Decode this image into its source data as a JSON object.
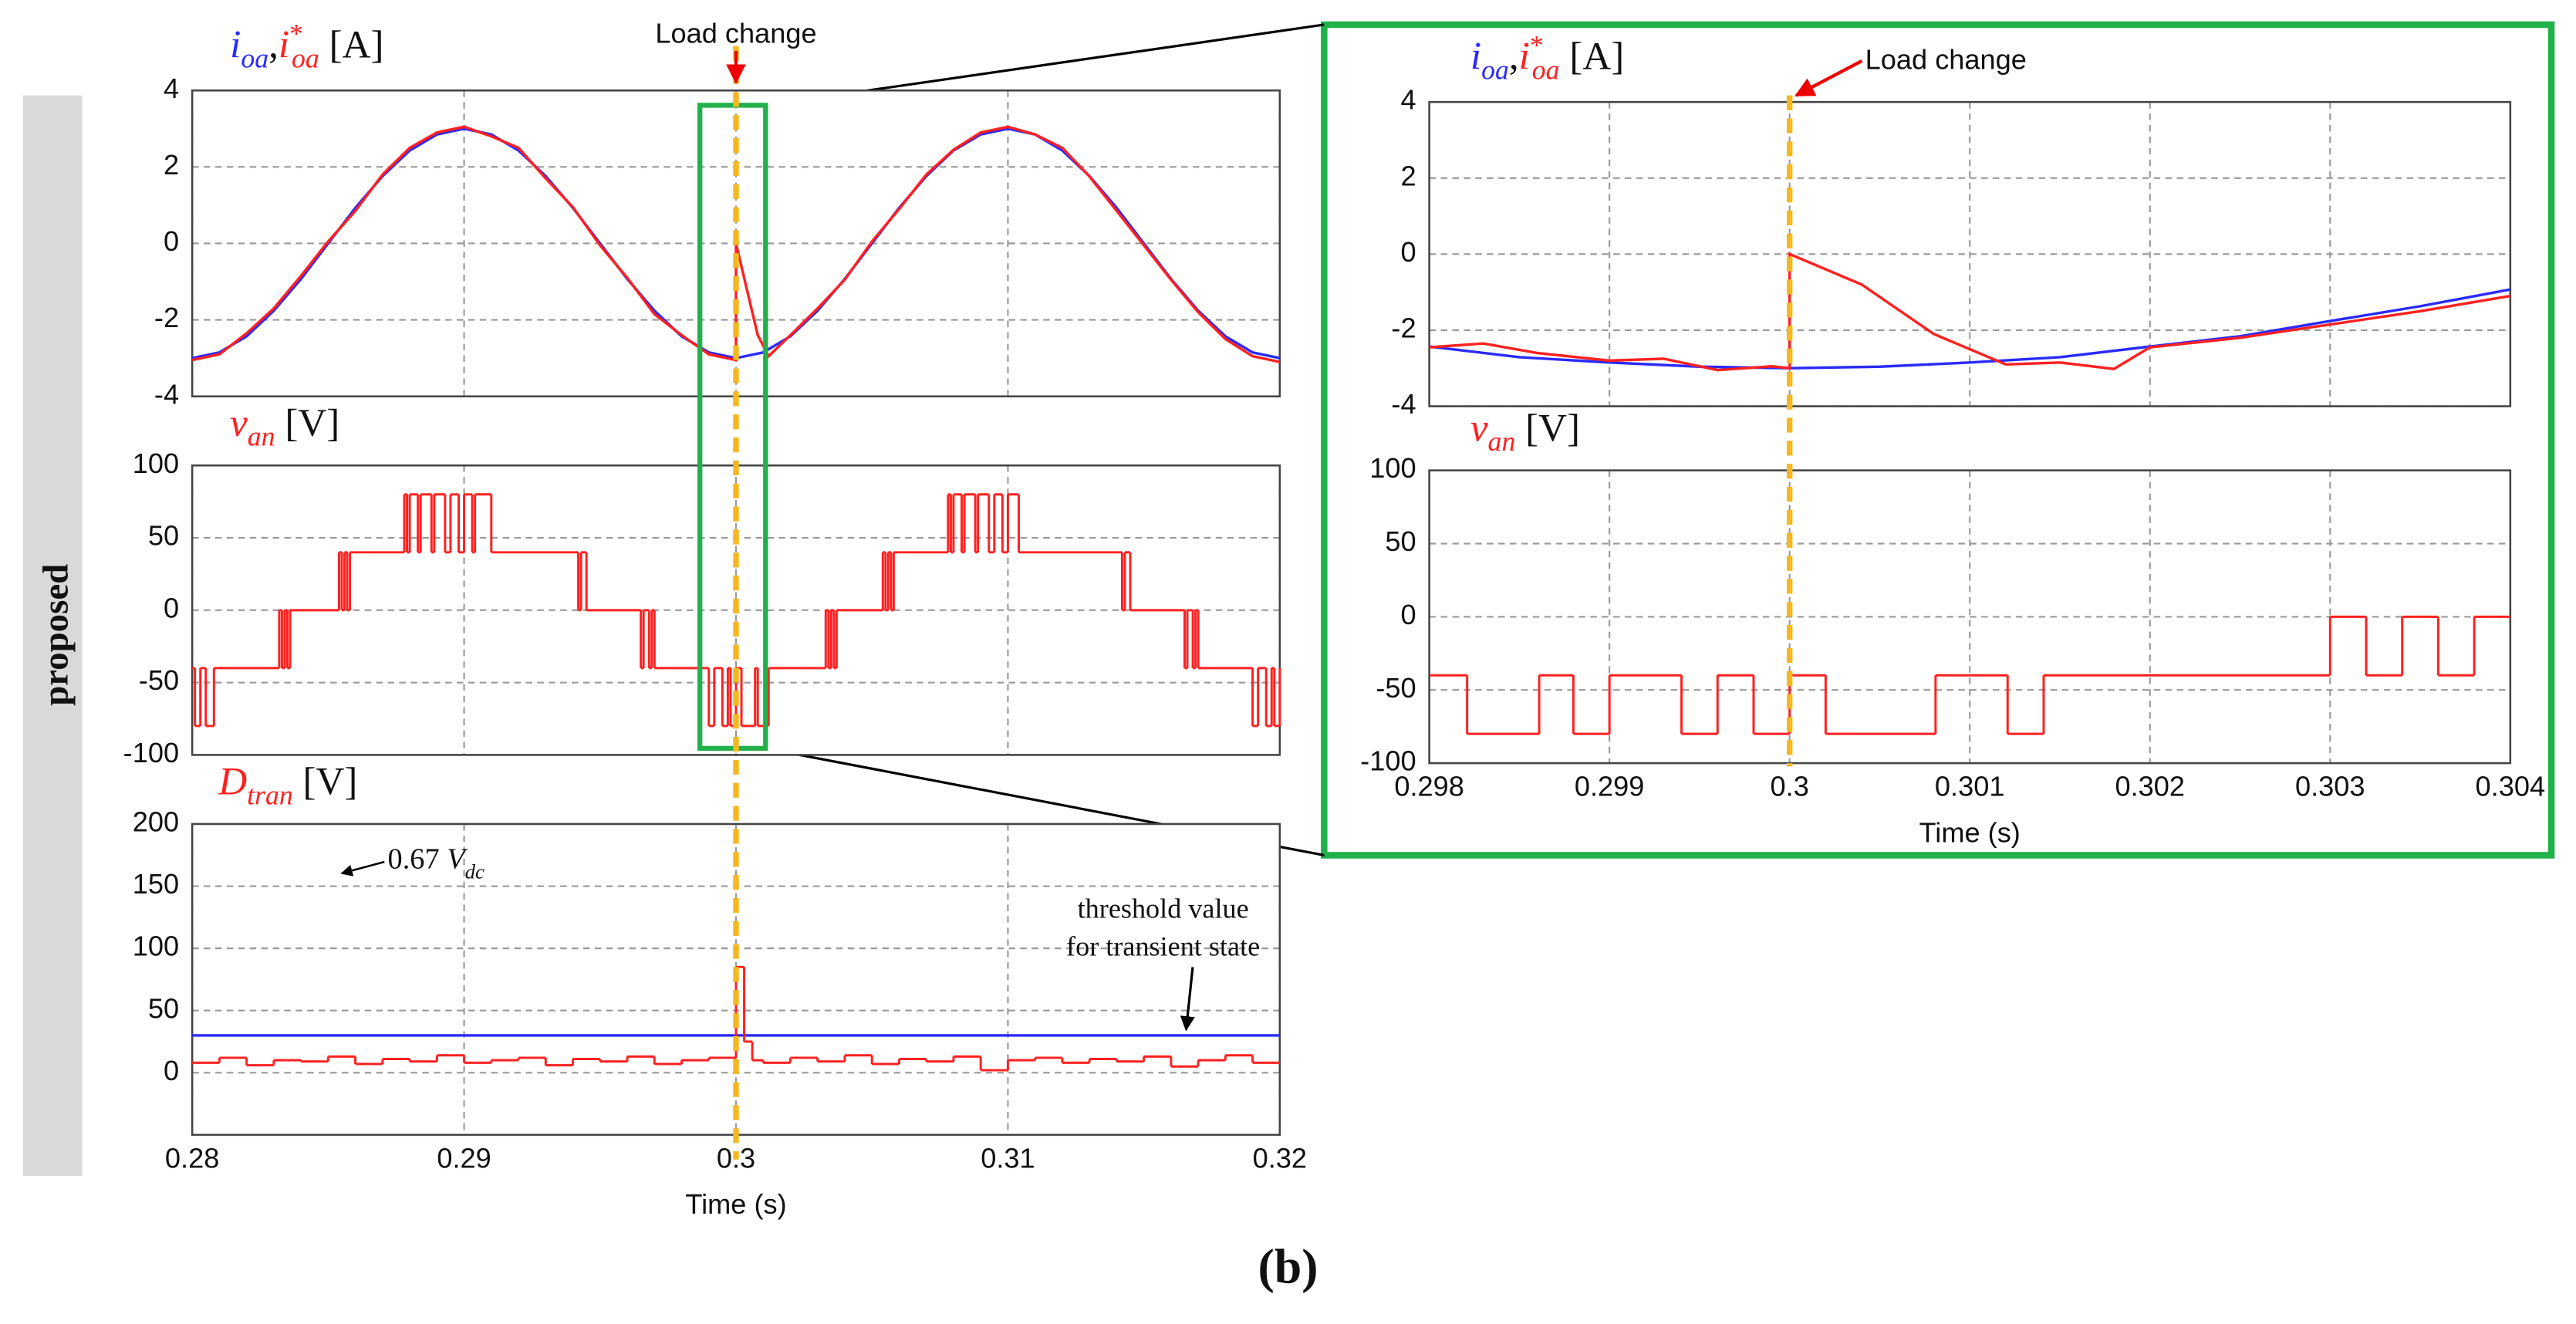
{
  "side_label": "proposed",
  "caption": "(b)",
  "chart_data": [
    {
      "type": "line",
      "title": [
        {
          "text": "i",
          "sub": "oa",
          "color": "#2a2aff",
          "italic": true
        },
        {
          "text": ","
        },
        {
          "text": "i",
          "sub": "oa",
          "sup": "*",
          "color": "#ff2020",
          "italic": true
        },
        {
          "text": " [A]"
        }
      ],
      "xlim": [
        0.28,
        0.32
      ],
      "xticks": [
        0.28,
        0.29,
        0.3,
        0.31,
        0.32
      ],
      "xtick_labels": false,
      "ylim": [
        -4,
        4
      ],
      "yticks": [
        -4,
        -2,
        0,
        2,
        4
      ],
      "grid": true,
      "series": [
        {
          "color": "#2a2aff",
          "step": false,
          "x": [
            0.28,
            0.281,
            0.282,
            0.283,
            0.284,
            0.285,
            0.286,
            0.287,
            0.288,
            0.289,
            0.29,
            0.291,
            0.292,
            0.293,
            0.294,
            0.295,
            0.296,
            0.297,
            0.298,
            0.299,
            0.3,
            0.301,
            0.302,
            0.303,
            0.304,
            0.305,
            0.306,
            0.307,
            0.308,
            0.309,
            0.31,
            0.311,
            0.312,
            0.313,
            0.314,
            0.315,
            0.316,
            0.317,
            0.318,
            0.319,
            0.32
          ],
          "values": [
            -3,
            -2.85,
            -2.43,
            -1.76,
            -0.93,
            0,
            0.93,
            1.76,
            2.43,
            2.85,
            3,
            2.85,
            2.43,
            1.76,
            0.93,
            0,
            -0.93,
            -1.76,
            -2.43,
            -2.85,
            -3,
            -2.85,
            -2.43,
            -1.76,
            -0.93,
            0,
            0.93,
            1.76,
            2.43,
            2.85,
            3,
            2.85,
            2.43,
            1.76,
            0.93,
            0,
            -0.93,
            -1.76,
            -2.43,
            -2.85,
            -3
          ]
        },
        {
          "color": "#ff2020",
          "step": false,
          "x": [
            0.28,
            0.281,
            0.282,
            0.283,
            0.284,
            0.285,
            0.286,
            0.287,
            0.288,
            0.289,
            0.29,
            0.291,
            0.292,
            0.293,
            0.294,
            0.295,
            0.296,
            0.297,
            0.298,
            0.299,
            0.3,
            0.3,
            0.3004,
            0.3008,
            0.3012,
            0.302,
            0.303,
            0.304,
            0.305,
            0.306,
            0.307,
            0.308,
            0.309,
            0.31,
            0.311,
            0.312,
            0.313,
            0.314,
            0.315,
            0.316,
            0.317,
            0.318,
            0.319,
            0.32
          ],
          "values": [
            -3.05,
            -2.9,
            -2.35,
            -1.7,
            -0.85,
            0.05,
            0.85,
            1.8,
            2.5,
            2.9,
            3.05,
            2.8,
            2.5,
            1.7,
            0.95,
            -0.05,
            -0.9,
            -1.85,
            -2.4,
            -2.9,
            -3.05,
            0,
            -1.2,
            -2.4,
            -2.95,
            -2.4,
            -1.7,
            -0.95,
            0.05,
            0.9,
            1.8,
            2.45,
            2.9,
            3.05,
            2.85,
            2.5,
            1.75,
            0.85,
            -0.05,
            -0.95,
            -1.8,
            -2.5,
            -2.95,
            -3.1
          ]
        }
      ],
      "annotations": [
        {
          "kind": "event",
          "text": "Load change",
          "x": 0.3
        }
      ]
    },
    {
      "type": "line",
      "title": [
        {
          "text": "v",
          "sub": "an",
          "color": "#ff2020",
          "italic": true
        },
        {
          "text": " [V]"
        }
      ],
      "xlim": [
        0.28,
        0.32
      ],
      "xticks": [
        0.28,
        0.29,
        0.3,
        0.31,
        0.32
      ],
      "xtick_labels": false,
      "ylim": [
        -100,
        100
      ],
      "yticks": [
        -100,
        -50,
        0,
        50,
        100
      ],
      "grid": true,
      "series": [
        {
          "color": "#ff2020",
          "step": true,
          "x": [
            0.28,
            0.2801,
            0.2803,
            0.2805,
            0.2808,
            0.2832,
            0.2833,
            0.2834,
            0.2835,
            0.2836,
            0.2854,
            0.2855,
            0.2856,
            0.2857,
            0.2858,
            0.2878,
            0.2879,
            0.288,
            0.2883,
            0.2884,
            0.2888,
            0.2889,
            0.2893,
            0.2895,
            0.2898,
            0.29,
            0.2903,
            0.2904,
            0.291,
            0.2942,
            0.2943,
            0.2945,
            0.2965,
            0.2966,
            0.2968,
            0.2969,
            0.297,
            0.299,
            0.2992,
            0.2995,
            0.2997,
            0.2998,
            0.3,
            0.3002,
            0.3007,
            0.3008,
            0.3012,
            0.3033,
            0.3034,
            0.3035,
            0.3036,
            0.3037,
            0.3054,
            0.3055,
            0.3056,
            0.3057,
            0.3058,
            0.3078,
            0.3079,
            0.308,
            0.3083,
            0.3084,
            0.3088,
            0.3089,
            0.3093,
            0.3095,
            0.3098,
            0.31,
            0.3104,
            0.3142,
            0.3143,
            0.3145,
            0.3165,
            0.3166,
            0.3168,
            0.3169,
            0.317,
            0.319,
            0.3192,
            0.3195,
            0.3197,
            0.3198,
            0.32
          ],
          "values": [
            -40,
            -80,
            -40,
            -80,
            -40,
            0,
            -40,
            0,
            -40,
            0,
            40,
            0,
            40,
            0,
            40,
            80,
            40,
            80,
            40,
            80,
            40,
            80,
            40,
            80,
            40,
            80,
            40,
            80,
            40,
            0,
            40,
            0,
            -40,
            0,
            -40,
            0,
            -40,
            -80,
            -40,
            -80,
            -40,
            -80,
            -40,
            -80,
            -40,
            -80,
            -40,
            0,
            -40,
            0,
            -40,
            0,
            40,
            0,
            40,
            0,
            40,
            80,
            40,
            80,
            40,
            80,
            40,
            80,
            40,
            80,
            40,
            80,
            40,
            0,
            40,
            0,
            -40,
            0,
            -40,
            0,
            -40,
            -80,
            -40,
            -80,
            -40,
            -80,
            -40
          ]
        }
      ]
    },
    {
      "type": "line",
      "title": [
        {
          "text": "D",
          "sub": "tran",
          "color": "#ff2020",
          "italic": true
        },
        {
          "text": " [V]"
        }
      ],
      "xlim": [
        0.28,
        0.32
      ],
      "xticks": [
        0.28,
        0.29,
        0.3,
        0.31,
        0.32
      ],
      "xtick_labels": true,
      "xlabel": "Time (s)",
      "ylim": [
        -50,
        200
      ],
      "yticks": [
        0,
        50,
        100,
        150,
        200
      ],
      "grid": true,
      "series": [
        {
          "color": "#2a2aff",
          "step": false,
          "x": [
            0.28,
            0.32
          ],
          "values": [
            30,
            30
          ]
        },
        {
          "color": "#ff2020",
          "step": true,
          "x": [
            0.28,
            0.281,
            0.282,
            0.283,
            0.284,
            0.285,
            0.286,
            0.287,
            0.288,
            0.289,
            0.29,
            0.291,
            0.292,
            0.293,
            0.294,
            0.295,
            0.296,
            0.297,
            0.298,
            0.299,
            0.3,
            0.3003,
            0.3006,
            0.301,
            0.302,
            0.303,
            0.304,
            0.305,
            0.306,
            0.307,
            0.308,
            0.309,
            0.31,
            0.311,
            0.312,
            0.313,
            0.314,
            0.315,
            0.316,
            0.317,
            0.318,
            0.319
          ],
          "values": [
            8,
            12,
            6,
            10,
            9,
            13,
            7,
            11,
            9,
            14,
            8,
            10,
            12,
            6,
            11,
            9,
            13,
            7,
            10,
            12,
            85,
            25,
            10,
            8,
            12,
            9,
            14,
            7,
            11,
            9,
            13,
            2,
            10,
            12,
            8,
            11,
            9,
            13,
            5,
            10,
            14,
            8
          ]
        }
      ],
      "annotations": [
        {
          "kind": "note",
          "lines": [
            "threshold value",
            "for transient state"
          ]
        },
        {
          "kind": "inset",
          "segments": [
            {
              "text": "0.67 "
            },
            {
              "text": "V",
              "sub": "dc",
              "italic": true
            }
          ]
        }
      ]
    },
    {
      "type": "line",
      "title": [
        {
          "text": "i",
          "sub": "oa",
          "color": "#2a2aff",
          "italic": true
        },
        {
          "text": ","
        },
        {
          "text": "i",
          "sub": "oa",
          "sup": "*",
          "color": "#ff2020",
          "italic": true
        },
        {
          "text": " [A]"
        }
      ],
      "xlim": [
        0.298,
        0.304
      ],
      "xticks": [
        0.298,
        0.299,
        0.3,
        0.301,
        0.302,
        0.303,
        0.304
      ],
      "xtick_labels": false,
      "ylim": [
        -4,
        4
      ],
      "yticks": [
        -4,
        -2,
        0,
        2,
        4
      ],
      "grid": true,
      "series": [
        {
          "color": "#2a2aff",
          "step": false,
          "x": [
            0.298,
            0.2985,
            0.299,
            0.2995,
            0.3,
            0.3005,
            0.301,
            0.3015,
            0.302,
            0.3025,
            0.303,
            0.3035,
            0.304
          ],
          "values": [
            -2.43,
            -2.71,
            -2.85,
            -2.96,
            -3,
            -2.96,
            -2.85,
            -2.71,
            -2.43,
            -2.16,
            -1.76,
            -1.37,
            -0.93
          ]
        },
        {
          "color": "#ff2020",
          "step": false,
          "x": [
            0.298,
            0.2983,
            0.2986,
            0.299,
            0.2993,
            0.2996,
            0.2999,
            0.3,
            0.3,
            0.3004,
            0.3008,
            0.3012,
            0.3015,
            0.3018,
            0.302,
            0.3025,
            0.303,
            0.3035,
            0.304
          ],
          "values": [
            -2.45,
            -2.35,
            -2.6,
            -2.8,
            -2.75,
            -3.05,
            -2.95,
            -3,
            0,
            -0.8,
            -2.1,
            -2.9,
            -2.85,
            -3.02,
            -2.45,
            -2.2,
            -1.85,
            -1.5,
            -1.1
          ]
        }
      ],
      "annotations": [
        {
          "kind": "event",
          "text": "Load change",
          "x": 0.3
        }
      ]
    },
    {
      "type": "line",
      "title": [
        {
          "text": "v",
          "sub": "an",
          "color": "#ff2020",
          "italic": true
        },
        {
          "text": " [V]"
        }
      ],
      "xlim": [
        0.298,
        0.304
      ],
      "xticks": [
        0.298,
        0.299,
        0.3,
        0.301,
        0.302,
        0.303,
        0.304
      ],
      "xtick_labels": true,
      "xlabel": "Time (s)",
      "ylim": [
        -100,
        100
      ],
      "yticks": [
        -100,
        -50,
        0,
        50,
        100
      ],
      "grid": true,
      "series": [
        {
          "color": "#ff2020",
          "step": true,
          "x": [
            0.298,
            0.29821,
            0.29861,
            0.2988,
            0.299,
            0.2994,
            0.2996,
            0.2998,
            0.3,
            0.3002,
            0.30081,
            0.30121,
            0.30141,
            0.303,
            0.3032,
            0.3034,
            0.3036,
            0.3038
          ],
          "values": [
            -40,
            -80,
            -40,
            -80,
            -40,
            -80,
            -40,
            -80,
            -40,
            -80,
            -40,
            -80,
            -40,
            0,
            -40,
            0,
            -40,
            0
          ]
        }
      ]
    }
  ]
}
